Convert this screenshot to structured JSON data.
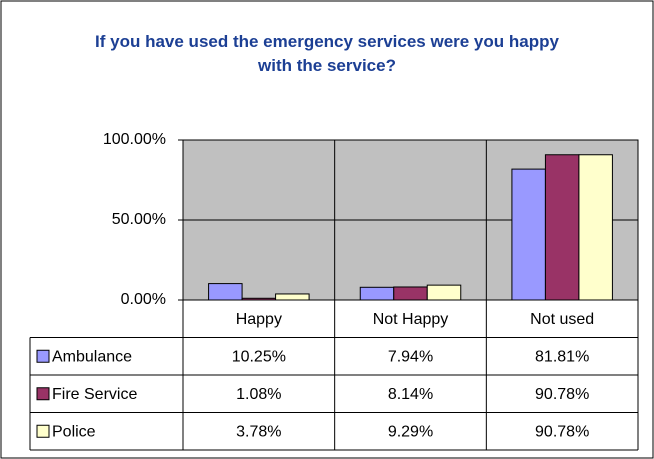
{
  "chart_data": {
    "type": "bar",
    "title": "If you have used the emergency services were you happy with the service?",
    "categories": [
      "Happy",
      "Not Happy",
      "Not used"
    ],
    "series": [
      {
        "name": "Ambulance",
        "color": "#9999ff",
        "values": [
          10.25,
          7.94,
          81.81
        ],
        "value_labels": [
          "10.25%",
          "7.94%",
          "81.81%"
        ]
      },
      {
        "name": "Fire Service",
        "color": "#993366",
        "values": [
          1.08,
          8.14,
          90.78
        ],
        "value_labels": [
          "1.08%",
          "8.14%",
          "90.78%"
        ]
      },
      {
        "name": "Police",
        "color": "#ffffcc",
        "values": [
          3.78,
          9.29,
          90.78
        ],
        "value_labels": [
          "3.78%",
          "9.29%",
          "90.78%"
        ]
      }
    ],
    "ylim": [
      0,
      100
    ],
    "yticks": [
      {
        "value": 0,
        "label": "0.00%"
      },
      {
        "value": 50,
        "label": "50.00%"
      },
      {
        "value": 100,
        "label": "100.00%"
      }
    ],
    "grid": true
  }
}
